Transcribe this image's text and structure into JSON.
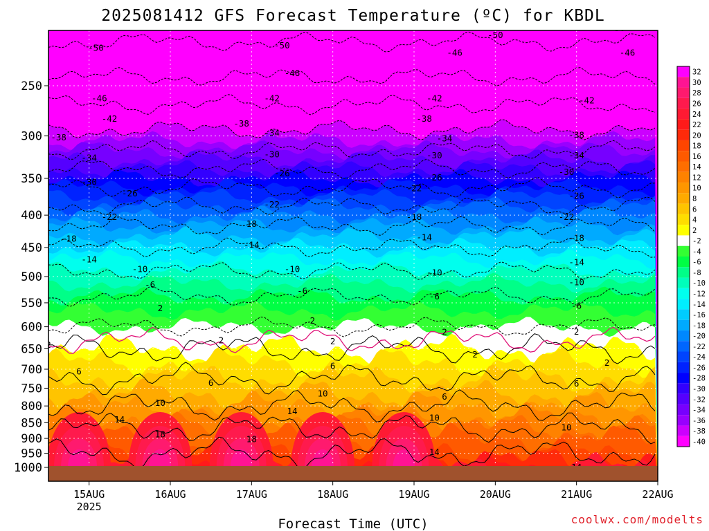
{
  "title": "2025081412 GFS Forecast Temperature (ºC) for KBDL",
  "credit": "coolwx.com/modelts",
  "chart_data": {
    "type": "heatmap",
    "title": "2025081412 GFS Forecast Temperature (ºC) for KBDL",
    "xlabel": "Forecast Time (UTC)",
    "ylabel": "",
    "y_scale": "pressure (inverted, hPa)",
    "ylim": [
      1030,
      200
    ],
    "xlim": [
      "2025-08-14T12",
      "2025-08-22T00"
    ],
    "y_ticks": [
      250,
      300,
      350,
      400,
      450,
      500,
      550,
      600,
      650,
      700,
      750,
      800,
      850,
      900,
      950,
      1000
    ],
    "x_ticks": [
      {
        "label": "15AUG",
        "sublabel": "2025",
        "time": "2025-08-15T00"
      },
      {
        "label": "16AUG",
        "sublabel": "",
        "time": "2025-08-16T00"
      },
      {
        "label": "17AUG",
        "sublabel": "",
        "time": "2025-08-17T00"
      },
      {
        "label": "18AUG",
        "sublabel": "",
        "time": "2025-08-18T00"
      },
      {
        "label": "19AUG",
        "sublabel": "",
        "time": "2025-08-19T00"
      },
      {
        "label": "20AUG",
        "sublabel": "",
        "time": "2025-08-20T00"
      },
      {
        "label": "21AUG",
        "sublabel": "",
        "time": "2025-08-21T00"
      },
      {
        "label": "22AUG",
        "sublabel": "",
        "time": "2025-08-22T00"
      }
    ],
    "grid": true,
    "colorbar": {
      "placement": "right",
      "levels": [
        32,
        30,
        28,
        26,
        24,
        22,
        20,
        18,
        16,
        14,
        12,
        10,
        8,
        6,
        4,
        2,
        -2,
        -4,
        -6,
        -8,
        -10,
        -12,
        -14,
        -16,
        -18,
        -20,
        -22,
        -24,
        -26,
        -28,
        -30,
        -32,
        -34,
        -36,
        -38,
        -40
      ],
      "colors": [
        "#ff00ff",
        "#ff1493",
        "#ff1a6e",
        "#ff1a4d",
        "#ff1a33",
        "#ff1a1a",
        "#ff2a0a",
        "#ff4500",
        "#ff5a00",
        "#ff6e00",
        "#ff8200",
        "#ff9600",
        "#ffaa00",
        "#ffc400",
        "#ffdd00",
        "#ffff00",
        "#ffffff",
        "#33ff33",
        "#00ff44",
        "#00ff88",
        "#00ffbb",
        "#00ffee",
        "#00eeff",
        "#00ccff",
        "#00aaff",
        "#0088ff",
        "#0066ff",
        "#0044ff",
        "#0022ff",
        "#0000ff",
        "#3300ff",
        "#5500ff",
        "#7700ff",
        "#9900ff",
        "#cc00ff",
        "#ff00ff"
      ]
    },
    "isotherm_levels": [
      -50,
      -46,
      -42,
      -38,
      -34,
      -30,
      -26,
      -22,
      -18,
      -14,
      -10,
      -6,
      -2,
      2,
      6,
      10,
      14,
      18
    ],
    "contour_labels": [
      {
        "text": "-50",
        "time": "2025-08-15T02",
        "p": 218
      },
      {
        "text": "-50",
        "time": "2025-08-17T09",
        "p": 216
      },
      {
        "text": "-50",
        "time": "2025-08-20T00",
        "p": 208
      },
      {
        "text": "-50",
        "time": "2025-08-21T12",
        "p": 203
      },
      {
        "text": "-46",
        "time": "2025-08-15T03",
        "p": 262
      },
      {
        "text": "-46",
        "time": "2025-08-17T12",
        "p": 239
      },
      {
        "text": "-46",
        "time": "2025-08-19T12",
        "p": 222
      },
      {
        "text": "-46",
        "time": "2025-08-21T15",
        "p": 222
      },
      {
        "text": "-42",
        "time": "2025-08-15T06",
        "p": 282
      },
      {
        "text": "-42",
        "time": "2025-08-17T06",
        "p": 262
      },
      {
        "text": "-42",
        "time": "2025-08-19T06",
        "p": 262
      },
      {
        "text": "-42",
        "time": "2025-08-21T03",
        "p": 264
      },
      {
        "text": "-38",
        "time": "2025-08-14T15",
        "p": 302
      },
      {
        "text": "-38",
        "time": "2025-08-16T21",
        "p": 287
      },
      {
        "text": "-38",
        "time": "2025-08-19T03",
        "p": 282
      },
      {
        "text": "-38",
        "time": "2025-08-21T00",
        "p": 299
      },
      {
        "text": "-34",
        "time": "2025-08-15T00",
        "p": 325
      },
      {
        "text": "-34",
        "time": "2025-08-17T06",
        "p": 297
      },
      {
        "text": "-34",
        "time": "2025-08-19T09",
        "p": 303
      },
      {
        "text": "-34",
        "time": "2025-08-21T00",
        "p": 322
      },
      {
        "text": "-30",
        "time": "2025-08-15T00",
        "p": 355
      },
      {
        "text": "-30",
        "time": "2025-08-17T06",
        "p": 321
      },
      {
        "text": "-30",
        "time": "2025-08-19T06",
        "p": 322
      },
      {
        "text": "-30",
        "time": "2025-08-20T21",
        "p": 342
      },
      {
        "text": "-26",
        "time": "2025-08-15T12",
        "p": 370
      },
      {
        "text": "-26",
        "time": "2025-08-17T09",
        "p": 344
      },
      {
        "text": "-26",
        "time": "2025-08-19T06",
        "p": 349
      },
      {
        "text": "-26",
        "time": "2025-08-21T00",
        "p": 373
      },
      {
        "text": "-22",
        "time": "2025-08-15T06",
        "p": 403
      },
      {
        "text": "-22",
        "time": "2025-08-17T06",
        "p": 385
      },
      {
        "text": "-22",
        "time": "2025-08-19T00",
        "p": 363
      },
      {
        "text": "-22",
        "time": "2025-08-20T21",
        "p": 403
      },
      {
        "text": "-18",
        "time": "2025-08-14T18",
        "p": 436
      },
      {
        "text": "-18",
        "time": "2025-08-19T00",
        "p": 403
      },
      {
        "text": "-18",
        "time": "2025-08-21T00",
        "p": 435
      },
      {
        "text": "18",
        "time": "2025-08-17T00",
        "p": 413
      },
      {
        "text": "-14",
        "time": "2025-08-15T00",
        "p": 470
      },
      {
        "text": "-14",
        "time": "2025-08-17T00",
        "p": 446
      },
      {
        "text": "-14",
        "time": "2025-08-19T03",
        "p": 434
      },
      {
        "text": "-14",
        "time": "2025-08-21T00",
        "p": 475
      },
      {
        "text": "-10",
        "time": "2025-08-15T15",
        "p": 487
      },
      {
        "text": "-10",
        "time": "2025-08-17T12",
        "p": 487
      },
      {
        "text": "-10",
        "time": "2025-08-19T06",
        "p": 493
      },
      {
        "text": "-10",
        "time": "2025-08-21T00",
        "p": 511
      },
      {
        "text": "-6",
        "time": "2025-08-15T18",
        "p": 515
      },
      {
        "text": "-6",
        "time": "2025-08-17T15",
        "p": 527
      },
      {
        "text": "-6",
        "time": "2025-08-19T06",
        "p": 538
      },
      {
        "text": "-6",
        "time": "2025-08-21T00",
        "p": 556
      },
      {
        "text": "2",
        "time": "2025-08-14T12",
        "p": 641
      },
      {
        "text": "2",
        "time": "2025-08-15T21",
        "p": 561
      },
      {
        "text": "2",
        "time": "2025-08-16T15",
        "p": 631
      },
      {
        "text": "2",
        "time": "2025-08-17T18",
        "p": 587
      },
      {
        "text": "2",
        "time": "2025-08-18T00",
        "p": 633
      },
      {
        "text": "2",
        "time": "2025-08-19T09",
        "p": 612
      },
      {
        "text": "2",
        "time": "2025-08-19T18",
        "p": 664
      },
      {
        "text": "2",
        "time": "2025-08-21T00",
        "p": 611
      },
      {
        "text": "2",
        "time": "2025-08-21T09",
        "p": 684
      },
      {
        "text": "6",
        "time": "2025-08-14T21",
        "p": 706
      },
      {
        "text": "6",
        "time": "2025-08-16T12",
        "p": 736
      },
      {
        "text": "6",
        "time": "2025-08-18T00",
        "p": 692
      },
      {
        "text": "6",
        "time": "2025-08-19T09",
        "p": 774
      },
      {
        "text": "6",
        "time": "2025-08-21T00",
        "p": 738
      },
      {
        "text": "10",
        "time": "2025-08-15T21",
        "p": 792
      },
      {
        "text": "10",
        "time": "2025-08-17T21",
        "p": 765
      },
      {
        "text": "10",
        "time": "2025-08-19T06",
        "p": 836
      },
      {
        "text": "10",
        "time": "2025-08-20T21",
        "p": 866
      },
      {
        "text": "14",
        "time": "2025-08-15T09",
        "p": 841
      },
      {
        "text": "14",
        "time": "2025-08-17T12",
        "p": 816
      },
      {
        "text": "14",
        "time": "2025-08-19T06",
        "p": 946
      },
      {
        "text": "14",
        "time": "2025-08-21T00",
        "p": 1000
      },
      {
        "text": "18",
        "time": "2025-08-15T21",
        "p": 888
      },
      {
        "text": "18",
        "time": "2025-08-17T00",
        "p": 903
      }
    ]
  }
}
